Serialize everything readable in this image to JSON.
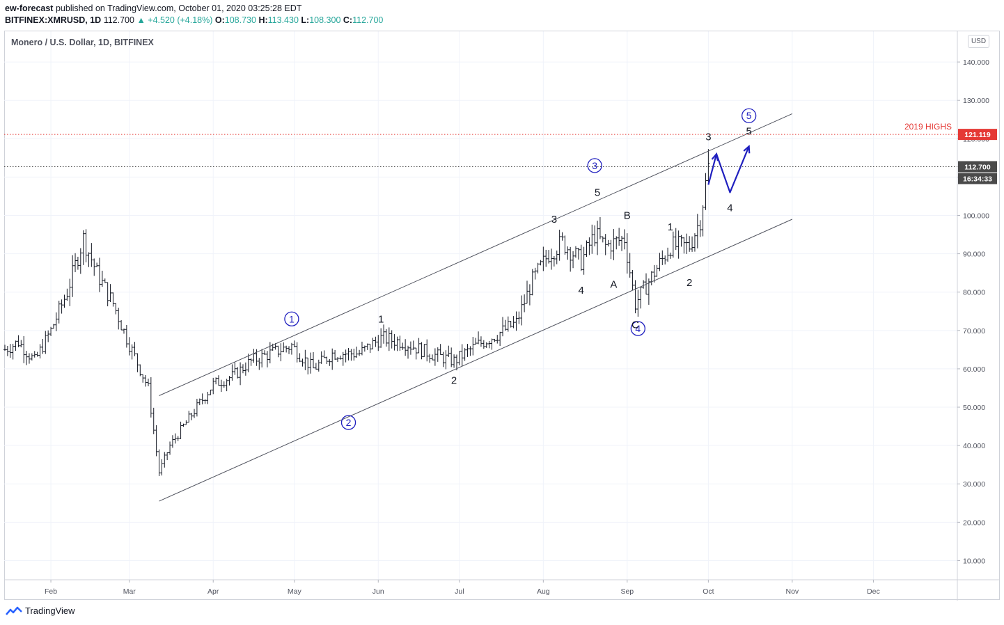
{
  "header": {
    "author": "ew-forecast",
    "published_text": "published on TradingView.com, October 01, 2020 03:25:28 EDT",
    "symbol": "BITFINEX:XMRUSD, 1D",
    "last": "112.700",
    "change": "▲ +4.520 (+4.18%)",
    "o_label": "O:",
    "o": "108.730",
    "h_label": "H:",
    "h": "113.430",
    "l_label": "L:",
    "l": "108.300",
    "c_label": "C:",
    "c": "112.700"
  },
  "currency_button": "USD",
  "footer_brand": "TradingView",
  "colors": {
    "wave_blue": "#1f1fbf",
    "red_line": "#e53935",
    "grid": "#f0f3fa",
    "text": "#131722"
  },
  "chart_data": {
    "type": "ohlc",
    "title": "Monero / U.S. Dollar, 1D, BITFINEX",
    "ylim": [
      5,
      148
    ],
    "y_ticks": [
      "10.000",
      "20.000",
      "30.000",
      "40.000",
      "50.000",
      "60.000",
      "70.000",
      "80.000",
      "90.000",
      "100.000",
      "110.000",
      "120.000",
      "130.000",
      "140.000"
    ],
    "x_ticks": [
      "Feb",
      "Mar",
      "Apr",
      "May",
      "Jun",
      "Jul",
      "Aug",
      "Sep",
      "Oct",
      "Nov",
      "Dec"
    ],
    "x_range": [
      "2020-01-15",
      "2020-12-31"
    ],
    "price_markers": [
      {
        "value": 121.119,
        "label": "121.119",
        "color": "#e53935",
        "note": "2019 HIGHS"
      },
      {
        "value": 112.7,
        "label": "112.700",
        "color": "#4a4a4a",
        "countdown": "16:34:33"
      }
    ],
    "channel": {
      "upper": [
        [
          "2020-03-12",
          53
        ],
        [
          "2020-11-01",
          126.5
        ]
      ],
      "lower": [
        [
          "2020-03-12",
          25.5
        ],
        [
          "2020-11-01",
          99
        ]
      ]
    },
    "projection": [
      [
        "2020-10-01",
        108
      ],
      [
        "2020-10-04",
        116
      ],
      [
        "2020-10-09",
        106
      ],
      [
        "2020-10-16",
        118
      ]
    ],
    "wave_labels": [
      {
        "text": "1",
        "date": "2020-04-30",
        "price": 73,
        "circled": true
      },
      {
        "text": "2",
        "date": "2020-05-21",
        "price": 46,
        "circled": true
      },
      {
        "text": "3",
        "date": "2020-08-20",
        "price": 113,
        "circled": true
      },
      {
        "text": "4",
        "date": "2020-09-05",
        "price": 70.5,
        "circled": true
      },
      {
        "text": "5",
        "date": "2020-10-16",
        "price": 126,
        "circled": true
      },
      {
        "text": "1",
        "date": "2020-06-02",
        "price": 73,
        "circled": false
      },
      {
        "text": "2",
        "date": "2020-06-29",
        "price": 57,
        "circled": false
      },
      {
        "text": "3",
        "date": "2020-08-05",
        "price": 99,
        "circled": false
      },
      {
        "text": "4",
        "date": "2020-08-15",
        "price": 80.5,
        "circled": false
      },
      {
        "text": "5",
        "date": "2020-08-21",
        "price": 106,
        "circled": false
      },
      {
        "text": "A",
        "date": "2020-08-27",
        "price": 82,
        "circled": false
      },
      {
        "text": "B",
        "date": "2020-09-01",
        "price": 100,
        "circled": false
      },
      {
        "text": "C",
        "date": "2020-09-04",
        "price": 71.5,
        "circled": false
      },
      {
        "text": "1",
        "date": "2020-09-17",
        "price": 97,
        "circled": false
      },
      {
        "text": "2",
        "date": "2020-09-24",
        "price": 82.5,
        "circled": false
      },
      {
        "text": "3",
        "date": "2020-10-01",
        "price": 120.5,
        "circled": false
      },
      {
        "text": "4",
        "date": "2020-10-09",
        "price": 102,
        "circled": false
      },
      {
        "text": "5",
        "date": "2020-10-16",
        "price": 122,
        "circled": false
      }
    ],
    "series_anchors": [
      [
        "2020-01-15",
        65
      ],
      [
        "2020-01-20",
        67
      ],
      [
        "2020-01-26",
        62
      ],
      [
        "2020-02-01",
        70
      ],
      [
        "2020-02-07",
        80
      ],
      [
        "2020-02-13",
        94
      ],
      [
        "2020-02-18",
        85
      ],
      [
        "2020-02-24",
        77
      ],
      [
        "2020-02-29",
        68
      ],
      [
        "2020-03-08",
        55
      ],
      [
        "2020-03-12",
        33
      ],
      [
        "2020-03-16",
        40
      ],
      [
        "2020-03-24",
        48
      ],
      [
        "2020-04-01",
        56
      ],
      [
        "2020-04-08",
        58
      ],
      [
        "2020-04-15",
        62
      ],
      [
        "2020-04-22",
        64
      ],
      [
        "2020-04-30",
        66
      ],
      [
        "2020-05-08",
        60
      ],
      [
        "2020-05-15",
        64
      ],
      [
        "2020-05-25",
        64
      ],
      [
        "2020-06-02",
        68
      ],
      [
        "2020-06-10",
        67
      ],
      [
        "2020-06-20",
        64
      ],
      [
        "2020-06-29",
        62
      ],
      [
        "2020-07-07",
        66
      ],
      [
        "2020-07-15",
        69
      ],
      [
        "2020-07-22",
        72
      ],
      [
        "2020-07-28",
        83
      ],
      [
        "2020-08-03",
        90
      ],
      [
        "2020-08-08",
        93
      ],
      [
        "2020-08-15",
        88
      ],
      [
        "2020-08-20",
        95
      ],
      [
        "2020-08-24",
        92
      ],
      [
        "2020-08-31",
        94
      ],
      [
        "2020-09-04",
        77
      ],
      [
        "2020-09-10",
        84
      ],
      [
        "2020-09-17",
        92
      ],
      [
        "2020-09-24",
        92
      ],
      [
        "2020-09-28",
        99
      ],
      [
        "2020-10-01",
        112.7
      ]
    ]
  }
}
